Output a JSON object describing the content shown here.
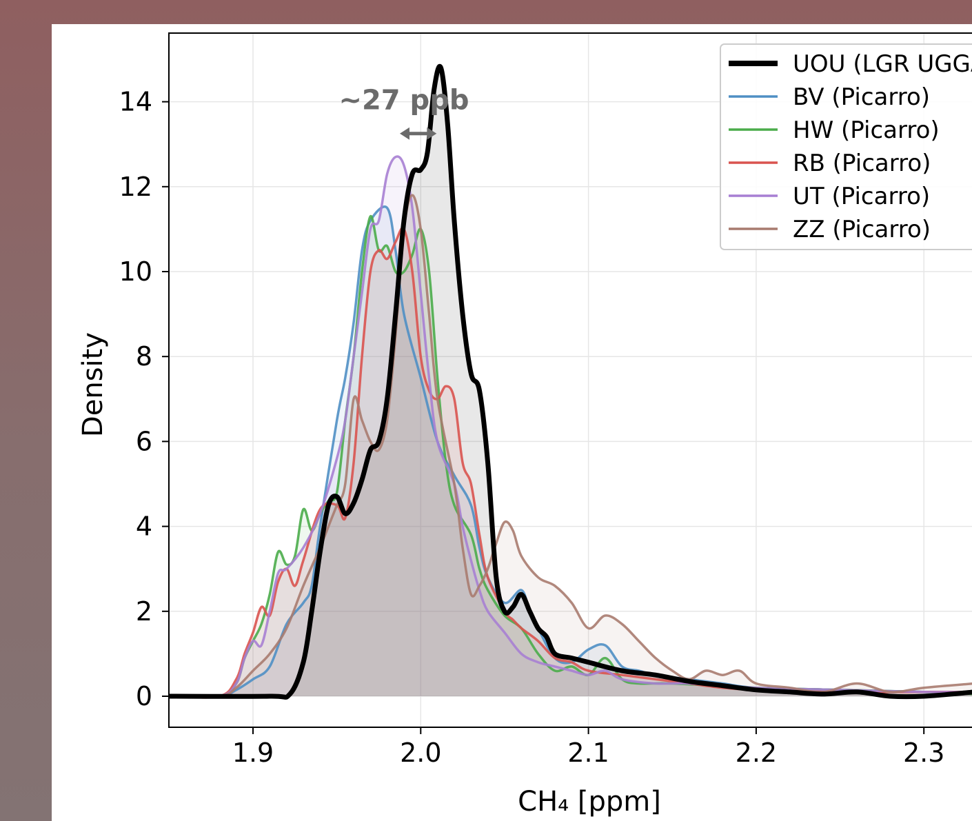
{
  "chart_data": {
    "type": "line",
    "title": "",
    "xlabel": "CH₄ [ppm]",
    "ylabel": "Density",
    "xlim": [
      1.85,
      2.33
    ],
    "ylim": [
      -0.7,
      15.5
    ],
    "xticks": [
      "1.9",
      "2.0",
      "2.1",
      "2.2",
      "2.3"
    ],
    "xtick_values": [
      1.9,
      2.0,
      2.1,
      2.2,
      2.3
    ],
    "yticks": [
      "0",
      "2",
      "4",
      "6",
      "8",
      "10",
      "12",
      "14"
    ],
    "ytick_values": [
      0,
      2,
      4,
      6,
      8,
      10,
      12,
      14
    ],
    "grid": true,
    "legend_position": "top-right",
    "annotation": {
      "text": "~27 ppb",
      "arrow_from": 1.99,
      "arrow_to": 2.007,
      "arrow_y": 13.25,
      "text_x": 1.99,
      "text_y": 14.05,
      "color": "#6b6b6b"
    },
    "series": [
      {
        "name": "UOU (LGR UGGA)",
        "color": "#000000",
        "points": [
          [
            1.85,
            0
          ],
          [
            1.91,
            0
          ],
          [
            1.922,
            0.05
          ],
          [
            1.93,
            0.8
          ],
          [
            1.935,
            2.0
          ],
          [
            1.94,
            3.4
          ],
          [
            1.945,
            4.5
          ],
          [
            1.95,
            4.7
          ],
          [
            1.955,
            4.3
          ],
          [
            1.96,
            4.55
          ],
          [
            1.965,
            5.1
          ],
          [
            1.97,
            5.8
          ],
          [
            1.975,
            6.0
          ],
          [
            1.98,
            7.0
          ],
          [
            1.985,
            9.0
          ],
          [
            1.99,
            11.2
          ],
          [
            1.995,
            12.3
          ],
          [
            2.0,
            12.4
          ],
          [
            2.004,
            12.8
          ],
          [
            2.008,
            14.3
          ],
          [
            2.012,
            14.8
          ],
          [
            2.016,
            13.5
          ],
          [
            2.02,
            11.2
          ],
          [
            2.025,
            9.0
          ],
          [
            2.03,
            7.6
          ],
          [
            2.035,
            7.2
          ],
          [
            2.04,
            5.5
          ],
          [
            2.045,
            2.8
          ],
          [
            2.05,
            2.0
          ],
          [
            2.055,
            2.1
          ],
          [
            2.06,
            2.4
          ],
          [
            2.065,
            2.0
          ],
          [
            2.07,
            1.6
          ],
          [
            2.075,
            1.4
          ],
          [
            2.08,
            1.0
          ],
          [
            2.09,
            0.9
          ],
          [
            2.1,
            0.8
          ],
          [
            2.12,
            0.6
          ],
          [
            2.14,
            0.5
          ],
          [
            2.16,
            0.35
          ],
          [
            2.18,
            0.25
          ],
          [
            2.2,
            0.15
          ],
          [
            2.22,
            0.1
          ],
          [
            2.24,
            0.05
          ],
          [
            2.26,
            0.1
          ],
          [
            2.28,
            0.0
          ],
          [
            2.3,
            0.0
          ],
          [
            2.33,
            0.1
          ]
        ]
      },
      {
        "name": "BV (Picarro)",
        "color": "#4f8fc4",
        "points": [
          [
            1.85,
            0
          ],
          [
            1.88,
            0
          ],
          [
            1.89,
            0.15
          ],
          [
            1.9,
            0.4
          ],
          [
            1.91,
            0.7
          ],
          [
            1.92,
            1.7
          ],
          [
            1.93,
            2.2
          ],
          [
            1.935,
            2.6
          ],
          [
            1.94,
            4.0
          ],
          [
            1.95,
            6.5
          ],
          [
            1.955,
            7.5
          ],
          [
            1.96,
            8.8
          ],
          [
            1.965,
            10.5
          ],
          [
            1.97,
            11.2
          ],
          [
            1.98,
            11.5
          ],
          [
            1.985,
            10.5
          ],
          [
            1.99,
            9.0
          ],
          [
            2.0,
            7.5
          ],
          [
            2.01,
            6.0
          ],
          [
            2.02,
            5.2
          ],
          [
            2.03,
            4.5
          ],
          [
            2.035,
            3.5
          ],
          [
            2.04,
            2.8
          ],
          [
            2.05,
            2.2
          ],
          [
            2.06,
            2.5
          ],
          [
            2.065,
            2.0
          ],
          [
            2.07,
            1.6
          ],
          [
            2.08,
            0.9
          ],
          [
            2.09,
            0.8
          ],
          [
            2.1,
            1.1
          ],
          [
            2.11,
            1.2
          ],
          [
            2.12,
            0.7
          ],
          [
            2.13,
            0.6
          ],
          [
            2.14,
            0.5
          ],
          [
            2.16,
            0.4
          ],
          [
            2.18,
            0.3
          ],
          [
            2.2,
            0.2
          ],
          [
            2.25,
            0.15
          ],
          [
            2.3,
            0.1
          ],
          [
            2.33,
            0.1
          ]
        ]
      },
      {
        "name": "HW (Picarro)",
        "color": "#4aac4a",
        "points": [
          [
            1.85,
            0
          ],
          [
            1.88,
            0
          ],
          [
            1.89,
            0.3
          ],
          [
            1.895,
            0.9
          ],
          [
            1.9,
            1.3
          ],
          [
            1.905,
            1.7
          ],
          [
            1.91,
            2.4
          ],
          [
            1.915,
            3.4
          ],
          [
            1.92,
            3.1
          ],
          [
            1.925,
            3.3
          ],
          [
            1.93,
            4.4
          ],
          [
            1.935,
            3.9
          ],
          [
            1.94,
            4.3
          ],
          [
            1.945,
            4.6
          ],
          [
            1.95,
            4.8
          ],
          [
            1.955,
            6.5
          ],
          [
            1.96,
            8.0
          ],
          [
            1.965,
            10.0
          ],
          [
            1.97,
            11.3
          ],
          [
            1.975,
            10.5
          ],
          [
            1.98,
            10.6
          ],
          [
            1.985,
            10.0
          ],
          [
            1.99,
            10.0
          ],
          [
            1.995,
            10.4
          ],
          [
            2.0,
            11.0
          ],
          [
            2.005,
            10.0
          ],
          [
            2.01,
            7.5
          ],
          [
            2.015,
            5.5
          ],
          [
            2.02,
            4.5
          ],
          [
            2.03,
            3.8
          ],
          [
            2.035,
            3.0
          ],
          [
            2.04,
            2.5
          ],
          [
            2.05,
            1.9
          ],
          [
            2.06,
            1.6
          ],
          [
            2.07,
            1.0
          ],
          [
            2.08,
            0.6
          ],
          [
            2.09,
            0.7
          ],
          [
            2.1,
            0.5
          ],
          [
            2.11,
            0.9
          ],
          [
            2.12,
            0.4
          ],
          [
            2.13,
            0.3
          ],
          [
            2.15,
            0.3
          ],
          [
            2.2,
            0.2
          ],
          [
            2.25,
            0.15
          ],
          [
            2.3,
            0.1
          ],
          [
            2.33,
            0.05
          ]
        ]
      },
      {
        "name": "RB (Picarro)",
        "color": "#d9534f",
        "points": [
          [
            1.85,
            0
          ],
          [
            1.88,
            0
          ],
          [
            1.89,
            0.4
          ],
          [
            1.895,
            1.0
          ],
          [
            1.9,
            1.5
          ],
          [
            1.905,
            2.1
          ],
          [
            1.91,
            1.9
          ],
          [
            1.915,
            2.7
          ],
          [
            1.92,
            3.0
          ],
          [
            1.925,
            2.6
          ],
          [
            1.93,
            3.2
          ],
          [
            1.94,
            4.4
          ],
          [
            1.95,
            4.5
          ],
          [
            1.955,
            4.2
          ],
          [
            1.96,
            5.5
          ],
          [
            1.965,
            8.0
          ],
          [
            1.97,
            10.0
          ],
          [
            1.975,
            10.5
          ],
          [
            1.98,
            10.3
          ],
          [
            1.985,
            10.7
          ],
          [
            1.99,
            11.0
          ],
          [
            1.995,
            10.0
          ],
          [
            2.0,
            8.0
          ],
          [
            2.005,
            7.2
          ],
          [
            2.01,
            7.0
          ],
          [
            2.015,
            7.3
          ],
          [
            2.02,
            7.0
          ],
          [
            2.025,
            5.5
          ],
          [
            2.03,
            5.0
          ],
          [
            2.035,
            3.8
          ],
          [
            2.04,
            2.8
          ],
          [
            2.05,
            2.0
          ],
          [
            2.055,
            1.8
          ],
          [
            2.06,
            1.6
          ],
          [
            2.07,
            1.3
          ],
          [
            2.08,
            0.9
          ],
          [
            2.09,
            0.8
          ],
          [
            2.1,
            0.6
          ],
          [
            2.12,
            0.5
          ],
          [
            2.14,
            0.4
          ],
          [
            2.16,
            0.3
          ],
          [
            2.18,
            0.2
          ],
          [
            2.2,
            0.15
          ],
          [
            2.25,
            0.1
          ],
          [
            2.3,
            0.1
          ],
          [
            2.33,
            0.1
          ]
        ]
      },
      {
        "name": "UT (Picarro)",
        "color": "#a77fd3",
        "points": [
          [
            1.85,
            0
          ],
          [
            1.88,
            0
          ],
          [
            1.89,
            0.3
          ],
          [
            1.895,
            0.9
          ],
          [
            1.9,
            1.3
          ],
          [
            1.905,
            1.2
          ],
          [
            1.91,
            2.0
          ],
          [
            1.915,
            2.9
          ],
          [
            1.92,
            3.0
          ],
          [
            1.93,
            3.5
          ],
          [
            1.94,
            4.3
          ],
          [
            1.95,
            5.6
          ],
          [
            1.955,
            6.5
          ],
          [
            1.96,
            8.0
          ],
          [
            1.965,
            9.5
          ],
          [
            1.97,
            11.0
          ],
          [
            1.975,
            11.2
          ],
          [
            1.98,
            12.3
          ],
          [
            1.985,
            12.7
          ],
          [
            1.99,
            12.5
          ],
          [
            1.995,
            11.5
          ],
          [
            2.0,
            9.5
          ],
          [
            2.005,
            7.5
          ],
          [
            2.01,
            6.0
          ],
          [
            2.02,
            5.0
          ],
          [
            2.025,
            4.0
          ],
          [
            2.03,
            3.2
          ],
          [
            2.035,
            2.5
          ],
          [
            2.04,
            2.0
          ],
          [
            2.05,
            1.5
          ],
          [
            2.06,
            1.0
          ],
          [
            2.07,
            0.8
          ],
          [
            2.08,
            0.7
          ],
          [
            2.09,
            0.6
          ],
          [
            2.1,
            0.5
          ],
          [
            2.11,
            0.6
          ],
          [
            2.12,
            0.4
          ],
          [
            2.14,
            0.3
          ],
          [
            2.16,
            0.3
          ],
          [
            2.2,
            0.2
          ],
          [
            2.25,
            0.15
          ],
          [
            2.3,
            0.1
          ],
          [
            2.33,
            0.1
          ]
        ]
      },
      {
        "name": "ZZ (Picarro)",
        "color": "#a87b6f",
        "points": [
          [
            1.85,
            0
          ],
          [
            1.88,
            0
          ],
          [
            1.89,
            0.2
          ],
          [
            1.9,
            0.6
          ],
          [
            1.91,
            1.0
          ],
          [
            1.92,
            1.6
          ],
          [
            1.93,
            2.6
          ],
          [
            1.94,
            3.5
          ],
          [
            1.945,
            4.0
          ],
          [
            1.95,
            4.5
          ],
          [
            1.955,
            5.0
          ],
          [
            1.96,
            7.0
          ],
          [
            1.965,
            6.5
          ],
          [
            1.97,
            6.0
          ],
          [
            1.975,
            5.8
          ],
          [
            1.98,
            6.5
          ],
          [
            1.985,
            8.5
          ],
          [
            1.99,
            11.0
          ],
          [
            1.995,
            11.8
          ],
          [
            2.0,
            11.0
          ],
          [
            2.005,
            9.0
          ],
          [
            2.01,
            7.0
          ],
          [
            2.02,
            5.0
          ],
          [
            2.025,
            3.5
          ],
          [
            2.03,
            2.4
          ],
          [
            2.035,
            2.6
          ],
          [
            2.04,
            3.0
          ],
          [
            2.045,
            3.6
          ],
          [
            2.05,
            4.1
          ],
          [
            2.055,
            3.9
          ],
          [
            2.06,
            3.3
          ],
          [
            2.07,
            2.8
          ],
          [
            2.08,
            2.6
          ],
          [
            2.09,
            2.2
          ],
          [
            2.1,
            1.6
          ],
          [
            2.11,
            1.9
          ],
          [
            2.12,
            1.7
          ],
          [
            2.13,
            1.3
          ],
          [
            2.14,
            0.9
          ],
          [
            2.15,
            0.6
          ],
          [
            2.16,
            0.4
          ],
          [
            2.17,
            0.6
          ],
          [
            2.18,
            0.5
          ],
          [
            2.19,
            0.6
          ],
          [
            2.2,
            0.3
          ],
          [
            2.22,
            0.2
          ],
          [
            2.24,
            0.1
          ],
          [
            2.26,
            0.3
          ],
          [
            2.28,
            0.1
          ],
          [
            2.3,
            0.2
          ],
          [
            2.33,
            0.3
          ]
        ]
      }
    ]
  }
}
